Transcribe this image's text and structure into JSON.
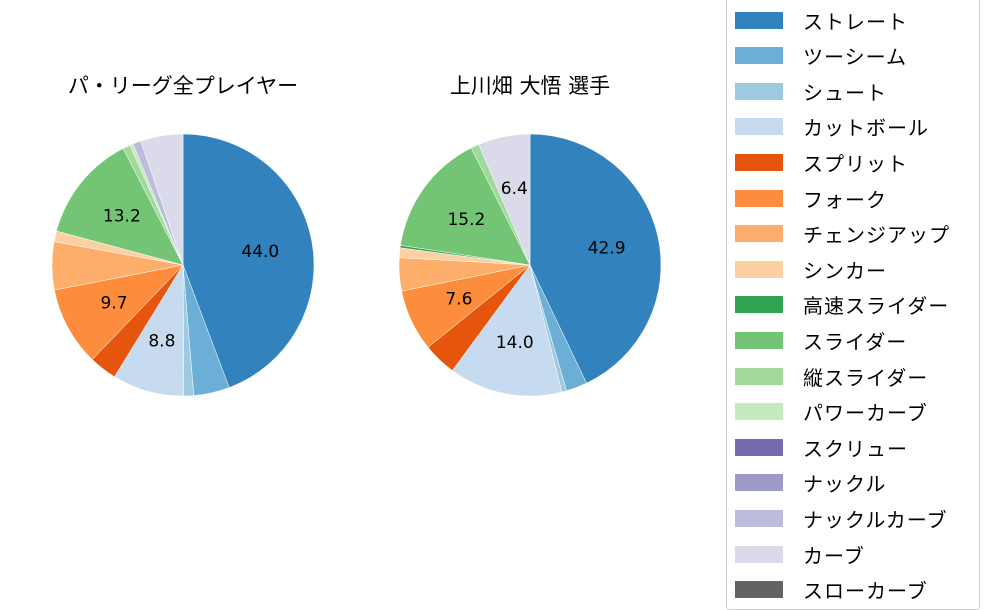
{
  "chart_data": [
    {
      "type": "pie",
      "title": "パ・リーグ全プレイヤー",
      "center": [
        183,
        265
      ],
      "radius": 131,
      "slices": [
        {
          "label": "ストレート",
          "value": 44.0,
          "show_label": true
        },
        {
          "label": "ツーシーム",
          "value": 4.4,
          "show_label": false
        },
        {
          "label": "シュート",
          "value": 1.2,
          "show_label": false
        },
        {
          "label": "カットボール",
          "value": 8.8,
          "show_label": true
        },
        {
          "label": "スプリット",
          "value": 3.4,
          "show_label": false
        },
        {
          "label": "フォーク",
          "value": 9.7,
          "show_label": true
        },
        {
          "label": "チェンジアップ",
          "value": 5.9,
          "show_label": false
        },
        {
          "label": "シンカー",
          "value": 1.3,
          "show_label": false
        },
        {
          "label": "高速スライダー",
          "value": 0.0,
          "show_label": false
        },
        {
          "label": "スライダー",
          "value": 13.2,
          "show_label": true
        },
        {
          "label": "縦スライダー",
          "value": 0.9,
          "show_label": false
        },
        {
          "label": "パワーカーブ",
          "value": 0.4,
          "show_label": false
        },
        {
          "label": "スクリュー",
          "value": 0.0,
          "show_label": false
        },
        {
          "label": "ナックル",
          "value": 0.0,
          "show_label": false
        },
        {
          "label": "ナックルカーブ",
          "value": 1.0,
          "show_label": false
        },
        {
          "label": "カーブ",
          "value": 5.2,
          "show_label": false
        },
        {
          "label": "スローカーブ",
          "value": 0.0,
          "show_label": false
        }
      ]
    },
    {
      "type": "pie",
      "title": "上川畑 大悟  選手",
      "center": [
        530,
        265
      ],
      "radius": 131,
      "slices": [
        {
          "label": "ストレート",
          "value": 42.9,
          "show_label": true
        },
        {
          "label": "ツーシーム",
          "value": 2.6,
          "show_label": false
        },
        {
          "label": "シュート",
          "value": 0.6,
          "show_label": false
        },
        {
          "label": "カットボール",
          "value": 14.0,
          "show_label": true
        },
        {
          "label": "スプリット",
          "value": 4.1,
          "show_label": false
        },
        {
          "label": "フォーク",
          "value": 7.6,
          "show_label": true
        },
        {
          "label": "チェンジアップ",
          "value": 4.1,
          "show_label": false
        },
        {
          "label": "シンカー",
          "value": 1.2,
          "show_label": false
        },
        {
          "label": "高速スライダー",
          "value": 0.3,
          "show_label": false
        },
        {
          "label": "スライダー",
          "value": 15.2,
          "show_label": true
        },
        {
          "label": "縦スライダー",
          "value": 1.0,
          "show_label": false
        },
        {
          "label": "パワーカーブ",
          "value": 0.0,
          "show_label": false
        },
        {
          "label": "スクリュー",
          "value": 0.0,
          "show_label": false
        },
        {
          "label": "ナックル",
          "value": 0.0,
          "show_label": false
        },
        {
          "label": "ナックルカーブ",
          "value": 0.0,
          "show_label": false
        },
        {
          "label": "カーブ",
          "value": 6.4,
          "show_label": true
        },
        {
          "label": "スローカーブ",
          "value": 0.0,
          "show_label": false
        }
      ]
    }
  ],
  "legend": {
    "position": "right",
    "items": [
      {
        "label": "ストレート",
        "color": "#3182bd"
      },
      {
        "label": "ツーシーム",
        "color": "#6baed6"
      },
      {
        "label": "シュート",
        "color": "#9ecae1"
      },
      {
        "label": "カットボール",
        "color": "#c6dbef"
      },
      {
        "label": "スプリット",
        "color": "#e6550d"
      },
      {
        "label": "フォーク",
        "color": "#fd8d3c"
      },
      {
        "label": "チェンジアップ",
        "color": "#fdae6b"
      },
      {
        "label": "シンカー",
        "color": "#fdd0a2"
      },
      {
        "label": "高速スライダー",
        "color": "#31a354"
      },
      {
        "label": "スライダー",
        "color": "#74c476"
      },
      {
        "label": "縦スライダー",
        "color": "#a1d99b"
      },
      {
        "label": "パワーカーブ",
        "color": "#c7e9c0"
      },
      {
        "label": "スクリュー",
        "color": "#756bb1"
      },
      {
        "label": "ナックル",
        "color": "#9e9ac8"
      },
      {
        "label": "ナックルカーブ",
        "color": "#bcbddc"
      },
      {
        "label": "カーブ",
        "color": "#dadaeb"
      },
      {
        "label": "スローカーブ",
        "color": "#636363"
      }
    ]
  }
}
